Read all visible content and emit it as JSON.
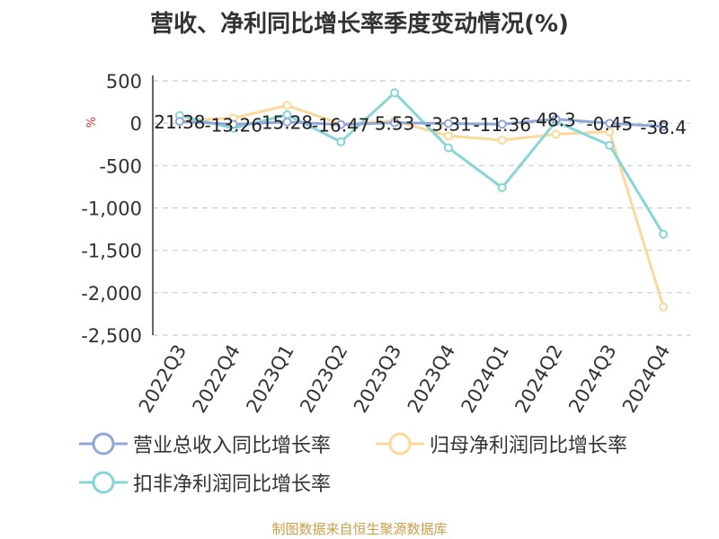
{
  "title": "营收、净利同比增长率季度变动情况(%)",
  "source": "制图数据来自恒生聚源数据库",
  "chart_data": {
    "type": "line",
    "title": "营收、净利同比增长率季度变动情况(%)",
    "ylabel": "%",
    "ylim": [
      -2500,
      500
    ],
    "yticks": [
      500,
      0,
      -500,
      -1000,
      -1500,
      -2000,
      -2500
    ],
    "ytick_labels": [
      "500",
      "0",
      "-500",
      "-1,000",
      "-1,500",
      "-2,000",
      "-2,500"
    ],
    "grid": true,
    "legend_position": "bottom",
    "categories": [
      "2022Q3",
      "2022Q4",
      "2023Q1",
      "2023Q2",
      "2023Q3",
      "2023Q4",
      "2024Q1",
      "2024Q2",
      "2024Q3",
      "2024Q4"
    ],
    "series": [
      {
        "name": "营业总收入同比增长率",
        "color": "#8fa8d8",
        "values": [
          21.38,
          -13.26,
          15.28,
          -16.47,
          5.53,
          -3.31,
          -11.36,
          48.3,
          -0.45,
          -38.4
        ],
        "labels": [
          "21.38",
          "-13.26",
          "15.28",
          "-16.47",
          "5.53",
          "-3.31",
          "-11.36",
          "48.3",
          "-0.45",
          "-38.4"
        ]
      },
      {
        "name": "归母净利润同比增长率",
        "color": "#fad99b",
        "values": [
          30,
          60,
          210,
          -10,
          30,
          -150,
          -200,
          -130,
          -100,
          -2170
        ]
      },
      {
        "name": "扣非净利润同比增长率",
        "color": "#88d5d8",
        "values": [
          90,
          -60,
          100,
          -220,
          360,
          -290,
          -760,
          20,
          -260,
          -1310
        ]
      }
    ]
  }
}
